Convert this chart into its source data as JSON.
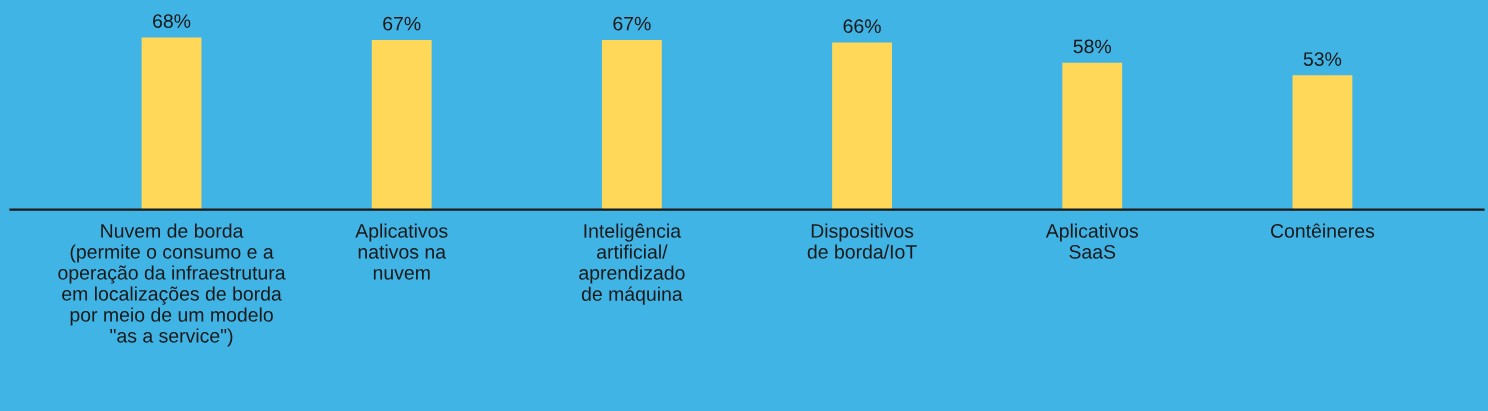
{
  "chart_data": {
    "type": "bar",
    "categories": [
      "Nuvem de borda\n(permite o consumo e a\noperação da infraestrutura\nem localizações de borda\npor meio de um modelo\n\"as a service\")",
      "Aplicativos\nnativos na\nnuvem",
      "Inteligência\nartificial/\naprendizado\nde máquina",
      "Dispositivos\nde borda/IoT",
      "Aplicativos\nSaaS",
      "Contêineres"
    ],
    "values": [
      68,
      67,
      67,
      66,
      58,
      53
    ],
    "value_labels": [
      "68%",
      "67%",
      "67%",
      "66%",
      "58%",
      "53%"
    ],
    "color": "#ffd85a",
    "grid": false,
    "legend": false
  }
}
